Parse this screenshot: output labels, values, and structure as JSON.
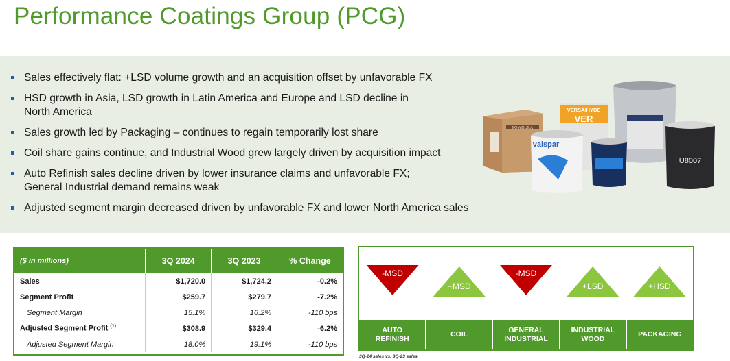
{
  "title": "Performance Coatings Group (PCG)",
  "bullets": [
    "Sales effectively flat: +LSD volume growth and an acquisition offset by unfavorable FX",
    "HSD growth in Asia, LSD growth in Latin America and Europe and LSD decline in North America",
    "Sales growth led by Packaging – continues to regain temporarily lost share",
    "Coil share gains continue, and Industrial Wood grew largely driven by acquisition impact",
    "Auto Refinish sales decline driven by lower insurance claims and unfavorable FX; General Industrial demand remains weak",
    "Adjusted segment margin decreased driven by unfavorable FX and lower North America sales"
  ],
  "products": {
    "powdura": "POWDURA",
    "versa_top": "VERSA/HYDE",
    "versa_big": "VER",
    "valspar": "valspar",
    "paint_can": "U8007"
  },
  "table": {
    "headers": [
      "($ in millions)",
      "3Q 2024",
      "3Q 2023",
      "% Change"
    ],
    "rows": [
      {
        "label": "Sales",
        "sup": "",
        "c1": "$1,720.0",
        "c2": "$1,724.2",
        "c3": "-0.2%",
        "style": "bold"
      },
      {
        "label": "Segment Profit",
        "sup": "",
        "c1": "$259.7",
        "c2": "$279.7",
        "c3": "-7.2%",
        "style": "bold"
      },
      {
        "label": "Segment Margin",
        "sup": "",
        "c1": "15.1%",
        "c2": "16.2%",
        "c3": "-110 bps",
        "style": "italic"
      },
      {
        "label": "Adjusted Segment Profit",
        "sup": "(1)",
        "c1": "$308.9",
        "c2": "$329.4",
        "c3": "-6.2%",
        "style": "bold"
      },
      {
        "label": "Adjusted Segment Margin",
        "sup": "",
        "c1": "18.0%",
        "c2": "19.1%",
        "c3": "-110 bps",
        "style": "italic"
      }
    ]
  },
  "drivers": [
    {
      "label": "AUTO REFINISH",
      "change": "-MSD",
      "direction": "down",
      "color": "#c00000"
    },
    {
      "label": "COIL",
      "change": "+MSD",
      "direction": "up",
      "color": "#8cc63f"
    },
    {
      "label": "GENERAL INDUSTRIAL",
      "change": "-MSD",
      "direction": "down",
      "color": "#c00000"
    },
    {
      "label": "INDUSTRIAL WOOD",
      "change": "+LSD",
      "direction": "up",
      "color": "#8cc63f"
    },
    {
      "label": "PACKAGING",
      "change": "+HSD",
      "direction": "up",
      "color": "#8cc63f"
    }
  ],
  "footnote": "3Q-24 sales vs. 3Q-23 sales"
}
